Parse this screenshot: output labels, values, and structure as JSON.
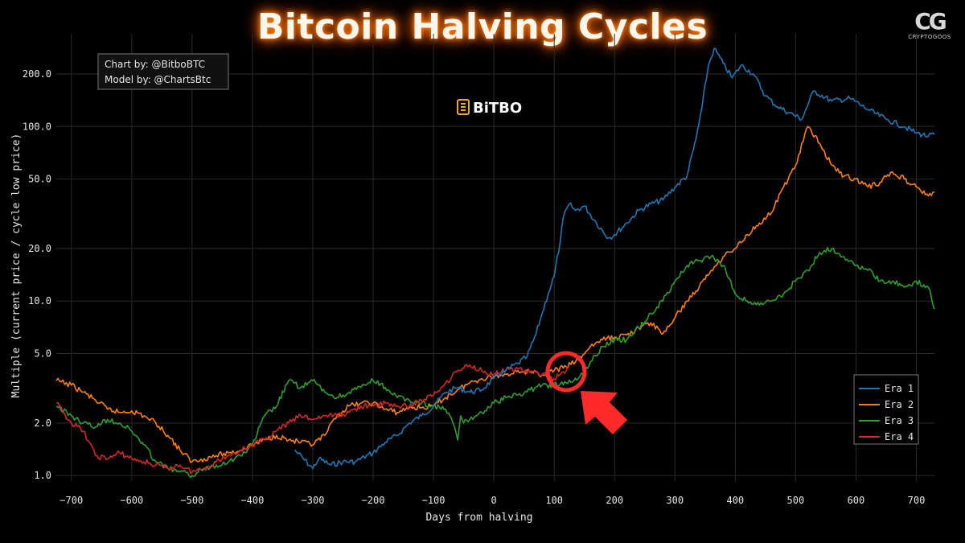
{
  "header": {
    "title": "Bitcoin Halving Cycles",
    "brand_mark": "CG",
    "brand_name": "CRYPTOGOOS"
  },
  "credits": {
    "line1": "Chart by: @BitboBTC",
    "line2": "Model by: @ChartsBtc"
  },
  "watermark": "BiTBO",
  "colors": {
    "era1": "#1f77b4",
    "era2": "#ff7f0e",
    "era3": "#2ca02c",
    "era4": "#d62728",
    "highlight": "#ff2b2b"
  },
  "chart_data": {
    "type": "line",
    "xlabel": "Days from halving",
    "ylabel": "Multiple (current price / cycle low price)",
    "yscale": "log",
    "xlim": [
      -725,
      730
    ],
    "ylim": [
      0.93,
      340
    ],
    "x_ticks": [
      -700,
      -600,
      -500,
      -400,
      -300,
      -200,
      -100,
      0,
      100,
      200,
      300,
      400,
      500,
      600,
      700
    ],
    "y_ticks": [
      1,
      2,
      5,
      10,
      20,
      50,
      100,
      200
    ],
    "y_tick_labels": [
      "1.0",
      "2.0",
      "5.0",
      "10.0",
      "20.0",
      "50.0",
      "100.0",
      "200.0"
    ],
    "grid": true,
    "legend_position": "bottom-right",
    "annotation": "red circle and arrow marking Era 4 near day 120",
    "series": [
      {
        "name": "Era 1",
        "color": "#1f77b4",
        "x": [
          -330,
          -300,
          -290,
          -270,
          -250,
          -230,
          -200,
          -180,
          -160,
          -140,
          -120,
          -100,
          -80,
          -60,
          -40,
          -20,
          0,
          20,
          40,
          55,
          70,
          80,
          90,
          100,
          110,
          115,
          125,
          135,
          150,
          170,
          190,
          200,
          220,
          240,
          260,
          280,
          300,
          320,
          335,
          345,
          355,
          365,
          380,
          395,
          410,
          430,
          450,
          470,
          490,
          510,
          530,
          560,
          590,
          620,
          650,
          680,
          700,
          720,
          730
        ],
        "y": [
          1.4,
          1.1,
          1.25,
          1.15,
          1.2,
          1.2,
          1.35,
          1.55,
          1.7,
          2.0,
          2.2,
          2.5,
          3.0,
          3.2,
          3.0,
          3.1,
          3.6,
          4.0,
          4.4,
          4.8,
          6.5,
          8.5,
          11,
          14,
          22,
          30,
          36,
          33,
          35,
          28,
          23,
          24,
          28,
          33,
          36,
          38,
          45,
          52,
          85,
          130,
          220,
          280,
          230,
          190,
          225,
          200,
          150,
          130,
          120,
          110,
          160,
          140,
          145,
          125,
          110,
          100,
          92,
          88,
          90
        ]
      },
      {
        "name": "Era 2",
        "color": "#ff7f0e",
        "x": [
          -725,
          -700,
          -680,
          -660,
          -640,
          -620,
          -600,
          -580,
          -560,
          -540,
          -520,
          -500,
          -480,
          -460,
          -440,
          -420,
          -400,
          -380,
          -360,
          -340,
          -320,
          -300,
          -280,
          -260,
          -240,
          -220,
          -200,
          -180,
          -160,
          -140,
          -120,
          -100,
          -80,
          -60,
          -40,
          -20,
          0,
          20,
          40,
          60,
          80,
          100,
          120,
          140,
          160,
          180,
          200,
          220,
          240,
          260,
          280,
          300,
          320,
          340,
          360,
          380,
          400,
          420,
          440,
          460,
          480,
          500,
          520,
          540,
          560,
          580,
          600,
          620,
          640,
          660,
          680,
          700,
          720,
          730
        ],
        "y": [
          3.5,
          3.3,
          3.0,
          2.7,
          2.4,
          2.3,
          2.35,
          2.2,
          2.0,
          1.7,
          1.4,
          1.2,
          1.25,
          1.3,
          1.35,
          1.4,
          1.5,
          1.6,
          1.7,
          1.6,
          1.55,
          1.5,
          1.7,
          2.2,
          2.5,
          2.6,
          2.6,
          2.4,
          2.3,
          2.45,
          2.45,
          2.5,
          2.8,
          3.1,
          3.4,
          3.6,
          3.7,
          3.8,
          4.0,
          3.9,
          3.8,
          4.0,
          4.2,
          4.6,
          5.5,
          6.0,
          6.2,
          6.4,
          7.0,
          7.5,
          6.5,
          8.0,
          10,
          12,
          15,
          18,
          20,
          24,
          28,
          32,
          45,
          60,
          100,
          80,
          60,
          52,
          50,
          45,
          48,
          55,
          50,
          45,
          40,
          42
        ]
      },
      {
        "name": "Era 3",
        "color": "#2ca02c",
        "x": [
          -725,
          -700,
          -680,
          -660,
          -640,
          -620,
          -600,
          -580,
          -560,
          -540,
          -520,
          -500,
          -480,
          -460,
          -440,
          -420,
          -400,
          -380,
          -360,
          -340,
          -320,
          -300,
          -280,
          -260,
          -240,
          -220,
          -200,
          -180,
          -160,
          -140,
          -120,
          -100,
          -80,
          -65,
          -60,
          -55,
          -50,
          -40,
          -20,
          0,
          20,
          40,
          60,
          80,
          100,
          120,
          140,
          160,
          180,
          200,
          220,
          240,
          260,
          280,
          300,
          320,
          340,
          360,
          380,
          400,
          420,
          440,
          460,
          480,
          500,
          520,
          540,
          560,
          580,
          600,
          620,
          640,
          660,
          680,
          700,
          720,
          730
        ],
        "y": [
          2.5,
          2.2,
          2.0,
          1.9,
          2.1,
          2.0,
          1.8,
          1.5,
          1.2,
          1.1,
          1.05,
          1.0,
          1.1,
          1.15,
          1.2,
          1.3,
          1.5,
          2.2,
          2.5,
          3.5,
          3.2,
          3.5,
          3.0,
          2.8,
          3.0,
          3.2,
          3.5,
          3.2,
          2.8,
          2.7,
          2.6,
          2.5,
          2.4,
          1.9,
          1.6,
          2.2,
          2.0,
          2.1,
          2.3,
          2.6,
          2.8,
          2.9,
          3.1,
          3.3,
          3.3,
          3.4,
          3.6,
          4.5,
          5.5,
          6.0,
          6.0,
          7.0,
          8.5,
          10,
          13,
          16,
          17,
          18,
          16,
          11,
          10,
          9.5,
          10,
          11,
          13,
          15,
          19,
          20,
          18,
          16,
          15,
          13,
          13,
          12,
          13,
          12,
          9
        ]
      },
      {
        "name": "Era 4",
        "color": "#d62728",
        "x": [
          -725,
          -700,
          -680,
          -660,
          -640,
          -620,
          -600,
          -580,
          -560,
          -540,
          -520,
          -500,
          -480,
          -460,
          -440,
          -420,
          -400,
          -380,
          -360,
          -340,
          -320,
          -300,
          -280,
          -260,
          -240,
          -220,
          -200,
          -180,
          -160,
          -140,
          -120,
          -100,
          -80,
          -60,
          -40,
          -20,
          0,
          20,
          40,
          60,
          80,
          100,
          110,
          120,
          125
        ],
        "y": [
          2.6,
          2.0,
          1.8,
          1.3,
          1.25,
          1.35,
          1.25,
          1.2,
          1.15,
          1.1,
          1.15,
          1.05,
          1.1,
          1.2,
          1.3,
          1.4,
          1.5,
          1.6,
          1.8,
          2.0,
          2.2,
          2.1,
          2.2,
          2.2,
          2.3,
          2.5,
          2.5,
          2.6,
          2.5,
          2.5,
          2.7,
          2.9,
          3.4,
          4.0,
          4.3,
          4.0,
          3.8,
          4.0,
          4.1,
          3.9,
          3.8,
          3.6,
          3.8,
          4.0,
          4.2
        ]
      }
    ]
  }
}
